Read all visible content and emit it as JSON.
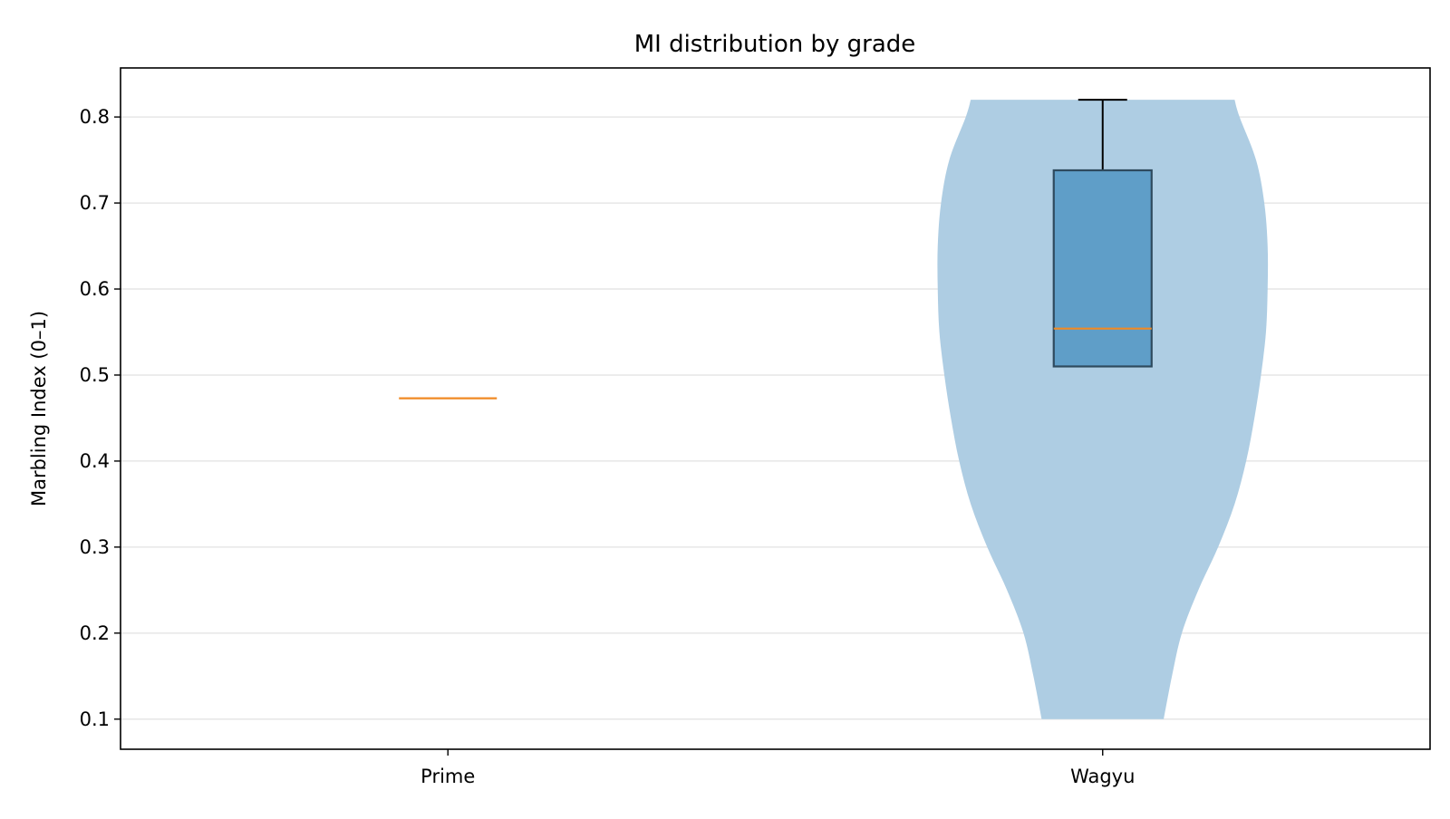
{
  "chart_data": {
    "type": "violin",
    "title": "MI distribution by grade",
    "xlabel": "",
    "ylabel": "Marbling Index (0–1)",
    "categories": [
      "Prime",
      "Wagyu"
    ],
    "ylim": [
      0.065,
      0.857
    ],
    "yticks": [
      "0.1",
      "0.2",
      "0.3",
      "0.4",
      "0.5",
      "0.6",
      "0.7",
      "0.8"
    ],
    "grid": "horizontal",
    "series": [
      {
        "category": "Prime",
        "min": 0.473,
        "q1": 0.473,
        "median": 0.473,
        "q3": 0.473,
        "max": 0.473,
        "violin_shown": false
      },
      {
        "category": "Wagyu",
        "min": 0.51,
        "q1": 0.51,
        "median": 0.554,
        "q3": 0.738,
        "max": 0.82,
        "violin_shown": true,
        "density_range": [
          0.1,
          0.82
        ],
        "density_profile": [
          [
            0.1,
            0.37
          ],
          [
            0.15,
            0.42
          ],
          [
            0.2,
            0.48
          ],
          [
            0.25,
            0.58
          ],
          [
            0.3,
            0.7
          ],
          [
            0.35,
            0.8
          ],
          [
            0.4,
            0.87
          ],
          [
            0.45,
            0.92
          ],
          [
            0.5,
            0.96
          ],
          [
            0.55,
            0.99
          ],
          [
            0.6,
            1.0
          ],
          [
            0.65,
            1.0
          ],
          [
            0.7,
            0.98
          ],
          [
            0.75,
            0.93
          ],
          [
            0.8,
            0.83
          ],
          [
            0.82,
            0.8
          ]
        ]
      }
    ],
    "colors": {
      "violin": "#aecde3",
      "box_fill": "#5b9bc6",
      "box_edge": "#2e4a5e",
      "median": "#f08a24",
      "whisker": "#000000",
      "grid": "#e6e6e6"
    }
  }
}
